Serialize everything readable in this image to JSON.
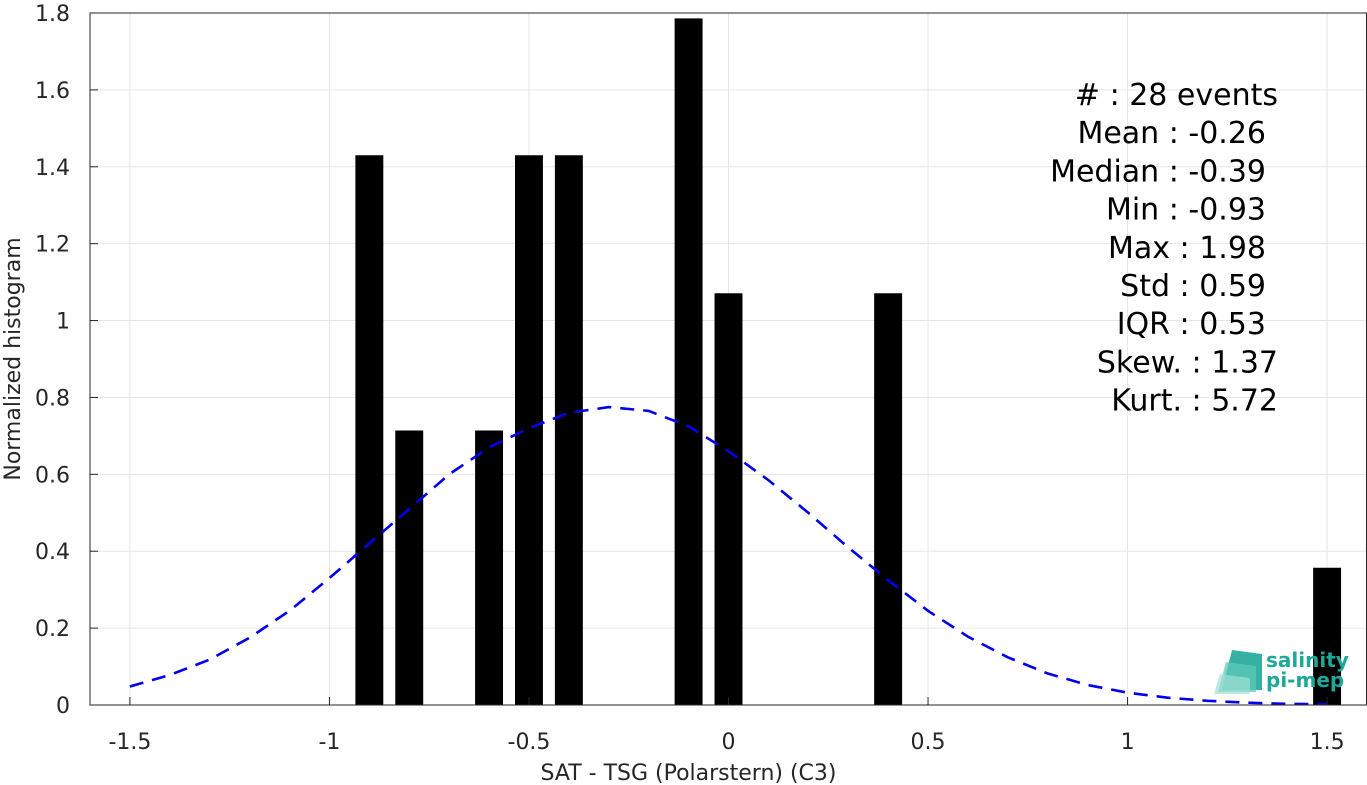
{
  "chart_data": {
    "type": "bar",
    "xlabel": "SAT - TSG (Polarstern) (C3)",
    "ylabel": "Normalized histogram",
    "xlim": [
      -1.6,
      1.6
    ],
    "ylim": [
      0,
      1.8
    ],
    "xticks": [
      -1.5,
      -1,
      -0.5,
      0,
      0.5,
      1,
      1.5
    ],
    "xtick_labels": [
      "-1.5",
      "-1",
      "-0.5",
      "0",
      "0.5",
      "1",
      "1.5"
    ],
    "yticks": [
      0,
      0.2,
      0.4,
      0.6,
      0.8,
      1,
      1.2,
      1.4,
      1.6,
      1.8
    ],
    "ytick_labels": [
      "0",
      "0.2",
      "0.4",
      "0.6",
      "0.8",
      "1",
      "1.2",
      "1.4",
      "1.6",
      "1.8"
    ],
    "grid": true,
    "bin_width": 0.07,
    "bars": [
      {
        "x": -0.9,
        "value": 1.43
      },
      {
        "x": -0.8,
        "value": 0.714
      },
      {
        "x": -0.6,
        "value": 0.714
      },
      {
        "x": -0.5,
        "value": 1.43
      },
      {
        "x": -0.4,
        "value": 1.43
      },
      {
        "x": -0.1,
        "value": 1.786
      },
      {
        "x": 0.0,
        "value": 1.071
      },
      {
        "x": 0.4,
        "value": 1.071
      },
      {
        "x": 1.5,
        "value": 0.357
      }
    ],
    "fit_curve": {
      "style": "dashed",
      "color": "#0000ee",
      "x": [
        -1.5,
        -1.4,
        -1.3,
        -1.2,
        -1.1,
        -1.0,
        -0.9,
        -0.8,
        -0.7,
        -0.6,
        -0.5,
        -0.4,
        -0.3,
        -0.2,
        -0.1,
        0.0,
        0.1,
        0.2,
        0.3,
        0.4,
        0.5,
        0.6,
        0.7,
        0.8,
        0.9,
        1.0,
        1.1,
        1.2,
        1.3,
        1.4,
        1.5
      ],
      "y": [
        0.048,
        0.078,
        0.118,
        0.175,
        0.245,
        0.33,
        0.42,
        0.51,
        0.6,
        0.67,
        0.72,
        0.76,
        0.775,
        0.765,
        0.725,
        0.66,
        0.585,
        0.5,
        0.41,
        0.325,
        0.245,
        0.178,
        0.124,
        0.082,
        0.052,
        0.032,
        0.019,
        0.011,
        0.006,
        0.003,
        0.002
      ]
    },
    "stats": [
      {
        "label": "#  : 28 events"
      },
      {
        "label": "Mean : -0.26"
      },
      {
        "label": "Median : -0.39"
      },
      {
        "label": "Min : -0.93"
      },
      {
        "label": "Max : 1.98"
      },
      {
        "label": "Std : 0.59"
      },
      {
        "label": "IQR : 0.53"
      },
      {
        "label": "Skew. : 1.37"
      },
      {
        "label": "Kurt. : 5.72"
      }
    ]
  },
  "logo": {
    "line1": "salinity",
    "line2": "pi-mep"
  },
  "colors": {
    "bar": "#000000",
    "fit": "#0000ee",
    "grid": "#e6e6e6",
    "axis": "#262626",
    "logo": "#1fa89a"
  }
}
